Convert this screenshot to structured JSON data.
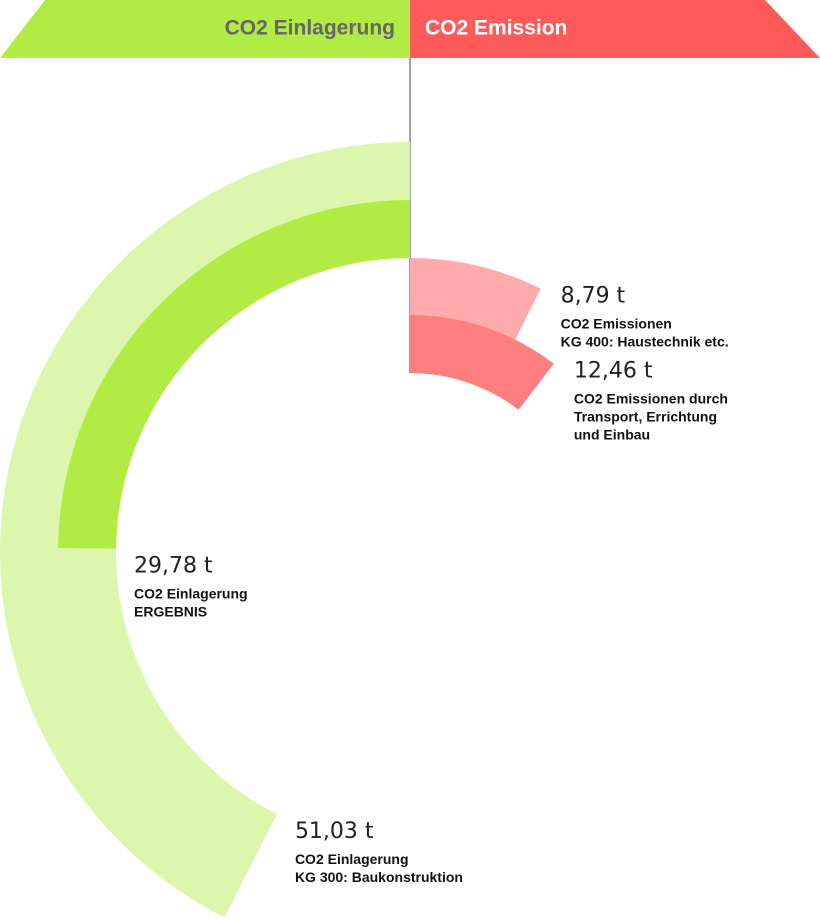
{
  "chart_data": {
    "type": "radial",
    "ylim": [
      0,
      120
    ],
    "groups": [
      {
        "name": "CO2 Einlagerung",
        "color": "#b3eb45",
        "categories": [
          [
            "CO2 Einlagerung",
            "KG 300: Baukonstruktion"
          ],
          [
            "CO2 Einlagerung",
            "ERGEBNIS"
          ]
        ],
        "values": [
          51.03,
          29.78
        ],
        "value_labels": [
          "51,03 t",
          "29,78 t"
        ],
        "colors": [
          "#dcf7ad",
          "#b3eb45"
        ]
      },
      {
        "name": "CO2 Emission",
        "color": "#ff5a5a",
        "categories": [
          [
            "CO2 Emissionen",
            "KG 400: Haustechnik etc."
          ],
          [
            "CO2 Emissionen durch",
            "Transport, Errichtung",
            "und Einbau"
          ]
        ],
        "values": [
          8.79,
          12.46
        ],
        "value_labels": [
          "8,79 t",
          "12,46 t"
        ],
        "colors": [
          "#ffaaad",
          "#ff7f80"
        ]
      }
    ]
  }
}
